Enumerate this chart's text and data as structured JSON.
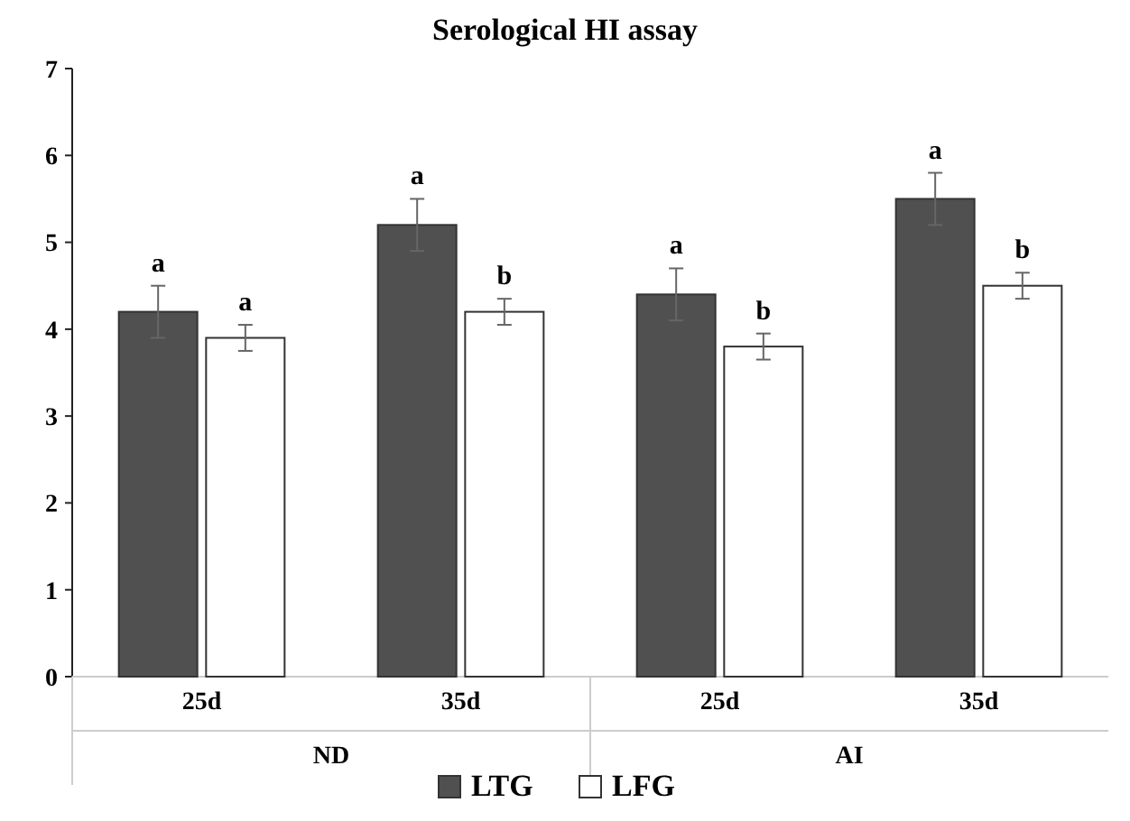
{
  "chart_data": {
    "type": "bar",
    "title": "Serological HI assay",
    "categories": [
      "25d",
      "35d",
      "25d",
      "35d"
    ],
    "series": [
      {
        "name": "LTG",
        "color": "#505050",
        "values": [
          4.2,
          5.2,
          4.4,
          5.5
        ],
        "errors": [
          0.3,
          0.3,
          0.3,
          0.3
        ],
        "value_labels": [
          "a",
          "a",
          "a",
          "a"
        ]
      },
      {
        "name": "LFG",
        "color": "#ffffff",
        "values": [
          3.9,
          4.2,
          3.8,
          4.5
        ],
        "errors": [
          0.15,
          0.15,
          0.15,
          0.15
        ],
        "value_labels": [
          "a",
          "b",
          "b",
          "b"
        ]
      }
    ],
    "annotations": [
      "ND",
      "AI"
    ],
    "ylim": [
      0,
      7
    ],
    "yticks": [
      0,
      1,
      2,
      3,
      4,
      5,
      6,
      7
    ],
    "grid": false,
    "legend": "bottom"
  }
}
